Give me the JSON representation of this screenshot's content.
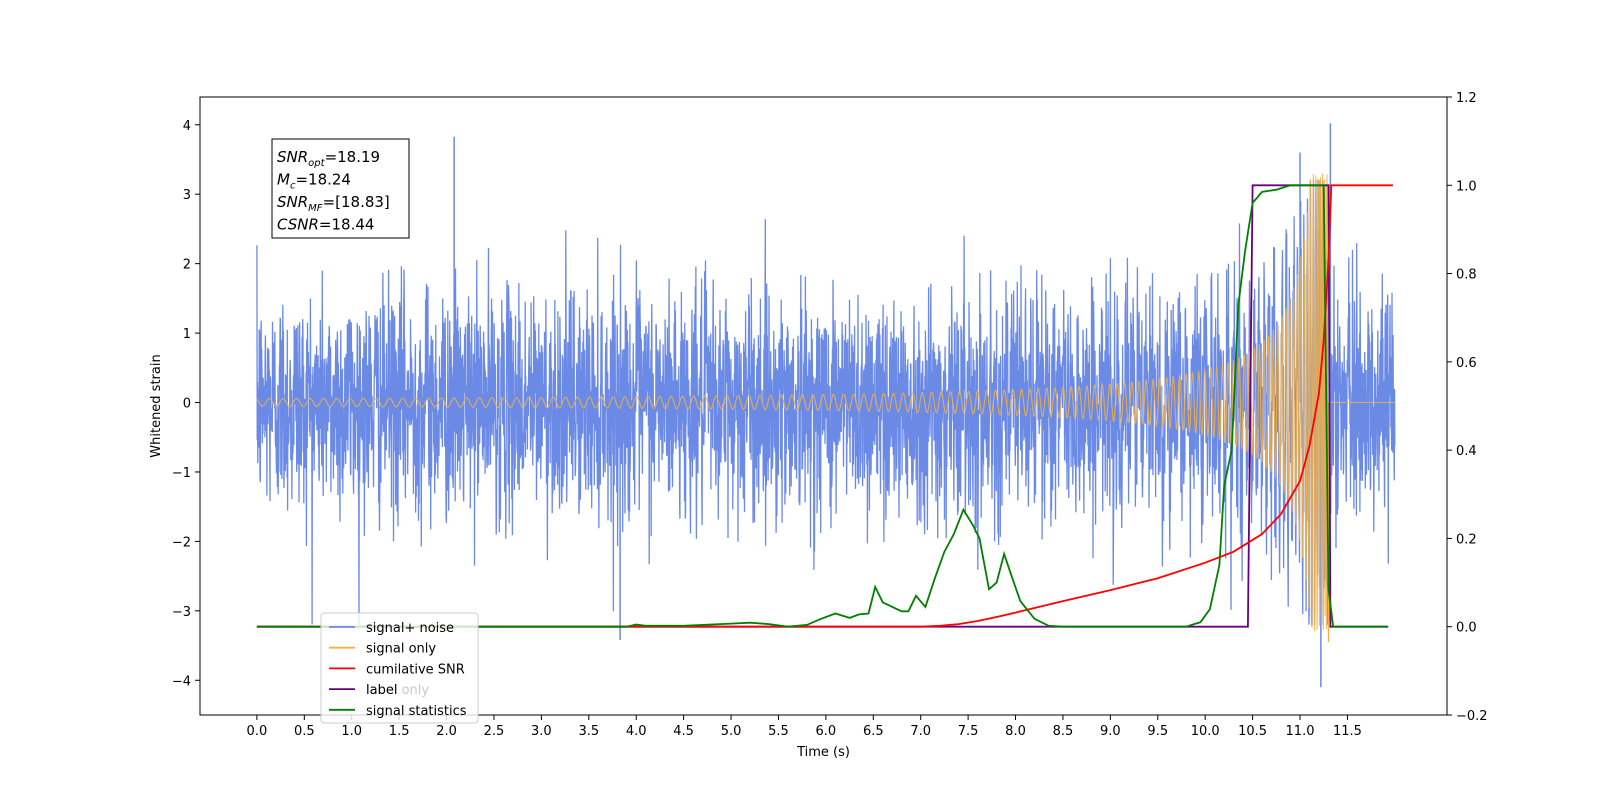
{
  "chart_data": {
    "type": "line",
    "title": "",
    "xlabel": "Time (s)",
    "ylabel": "Whitened strain",
    "xlim": [
      -0.6,
      12.55
    ],
    "ylim_left": [
      -4.5,
      4.4
    ],
    "ylim_right": [
      -0.2,
      1.2
    ],
    "x_ticks": [
      "0.0",
      "0.5",
      "1.0",
      "1.5",
      "2.0",
      "2.5",
      "3.0",
      "3.5",
      "4.0",
      "4.5",
      "5.0",
      "5.5",
      "6.0",
      "6.5",
      "7.0",
      "7.5",
      "8.0",
      "8.5",
      "9.0",
      "9.5",
      "10.0",
      "10.5",
      "11.0",
      "11.5"
    ],
    "x_tick_values": [
      0,
      0.5,
      1,
      1.5,
      2,
      2.5,
      3,
      3.5,
      4,
      4.5,
      5,
      5.5,
      6,
      6.5,
      7,
      7.5,
      8,
      8.5,
      9,
      9.5,
      10,
      10.5,
      11,
      11.5
    ],
    "y_left_ticks": [
      "−4",
      "−3",
      "−2",
      "−1",
      "0",
      "1",
      "2",
      "3",
      "4"
    ],
    "y_left_tick_values": [
      -4,
      -3,
      -2,
      -1,
      0,
      1,
      2,
      3,
      4
    ],
    "y_right_ticks": [
      "−0.2",
      "0.0",
      "0.2",
      "0.4",
      "0.6",
      "0.8",
      "1.0",
      "1.2"
    ],
    "y_right_tick_values": [
      -0.2,
      0,
      0.2,
      0.4,
      0.6,
      0.8,
      1,
      1.2
    ],
    "grid": false,
    "legend_position": "bottom-left",
    "series": [
      {
        "name": "signal+ noise",
        "axis": "left",
        "color": "#6b8ae6",
        "noise_sigma": 0.8,
        "x_range": [
          0,
          12.0
        ],
        "spikes": [
          [
            2.08,
            3.83
          ],
          [
            3.83,
            -3.42
          ],
          [
            11.32,
            4.02
          ],
          [
            11.22,
            -4.1
          ],
          [
            11.0,
            3.6
          ]
        ]
      },
      {
        "name": "signal only",
        "axis": "left",
        "color": "#f5b041",
        "x_range": [
          0,
          12.0
        ],
        "chirp_merger_time": 11.3,
        "chirp_peak_amplitude": 3.3,
        "chirp_min_at": -3.45
      },
      {
        "name": "cumilative SNR",
        "axis": "right",
        "color": "#ff0000",
        "points": [
          [
            0,
            0
          ],
          [
            7,
            0
          ],
          [
            7.2,
            0.002
          ],
          [
            7.4,
            0.006
          ],
          [
            7.6,
            0.013
          ],
          [
            7.8,
            0.022
          ],
          [
            8.0,
            0.032
          ],
          [
            8.5,
            0.058
          ],
          [
            9.0,
            0.083
          ],
          [
            9.5,
            0.11
          ],
          [
            10.0,
            0.145
          ],
          [
            10.3,
            0.17
          ],
          [
            10.6,
            0.21
          ],
          [
            10.8,
            0.255
          ],
          [
            11.0,
            0.33
          ],
          [
            11.1,
            0.41
          ],
          [
            11.2,
            0.53
          ],
          [
            11.25,
            0.65
          ],
          [
            11.3,
            0.83
          ],
          [
            11.33,
            1.0
          ],
          [
            11.98,
            1.0
          ]
        ]
      },
      {
        "name": "label",
        "axis": "right",
        "color": "#6a0080",
        "points": [
          [
            0,
            0
          ],
          [
            10.45,
            0
          ],
          [
            10.5,
            1.0
          ],
          [
            11.3,
            1.0
          ],
          [
            11.32,
            0
          ],
          [
            11.93,
            0
          ]
        ]
      },
      {
        "name": "signal statistics",
        "axis": "right",
        "color": "#008000",
        "points": [
          [
            0,
            0
          ],
          [
            3.9,
            0
          ],
          [
            4.0,
            0.005
          ],
          [
            4.1,
            0.002
          ],
          [
            4.5,
            0.002
          ],
          [
            5.0,
            0.007
          ],
          [
            5.2,
            0.009
          ],
          [
            5.4,
            0.006
          ],
          [
            5.6,
            0.0
          ],
          [
            5.8,
            0.004
          ],
          [
            5.95,
            0.018
          ],
          [
            6.1,
            0.03
          ],
          [
            6.25,
            0.02
          ],
          [
            6.35,
            0.028
          ],
          [
            6.45,
            0.03
          ],
          [
            6.52,
            0.09
          ],
          [
            6.6,
            0.055
          ],
          [
            6.8,
            0.035
          ],
          [
            6.87,
            0.035
          ],
          [
            6.95,
            0.07
          ],
          [
            7.05,
            0.045
          ],
          [
            7.15,
            0.11
          ],
          [
            7.25,
            0.17
          ],
          [
            7.35,
            0.21
          ],
          [
            7.45,
            0.265
          ],
          [
            7.55,
            0.23
          ],
          [
            7.62,
            0.2
          ],
          [
            7.72,
            0.085
          ],
          [
            7.8,
            0.1
          ],
          [
            7.88,
            0.165
          ],
          [
            7.95,
            0.12
          ],
          [
            8.05,
            0.058
          ],
          [
            8.2,
            0.018
          ],
          [
            8.35,
            0.002
          ],
          [
            8.5,
            0
          ],
          [
            9.8,
            0
          ],
          [
            9.9,
            0.007
          ],
          [
            9.95,
            0.01
          ],
          [
            10.05,
            0.04
          ],
          [
            10.15,
            0.14
          ],
          [
            10.2,
            0.32
          ],
          [
            10.28,
            0.4
          ],
          [
            10.35,
            0.73
          ],
          [
            10.42,
            0.85
          ],
          [
            10.5,
            0.96
          ],
          [
            10.6,
            0.985
          ],
          [
            10.75,
            0.99
          ],
          [
            10.9,
            1.0
          ],
          [
            11.25,
            1.0
          ],
          [
            11.3,
            0.085
          ],
          [
            11.35,
            0.0
          ],
          [
            11.92,
            0
          ]
        ]
      }
    ],
    "annotation": {
      "lines": [
        {
          "label": "SNR",
          "sub": "opt",
          "value": "=18.19"
        },
        {
          "label": "M",
          "sub": "c",
          "value": "=18.24"
        },
        {
          "label": "SNR",
          "sub": "MF",
          "value": "=[18.83]"
        },
        {
          "label": "CSNR",
          "sub": "",
          "value": "=18.44"
        }
      ]
    },
    "legend": [
      {
        "label": "signal+ noise",
        "color": "#6b8ae6"
      },
      {
        "label": "signal only",
        "color": "#f5b041"
      },
      {
        "label": "cumilative SNR",
        "color": "#ff0000"
      },
      {
        "label": "label",
        "color": "#6a0080"
      },
      {
        "label": "signal statistics",
        "color": "#008000"
      }
    ],
    "hidden_legend_text": "label only"
  }
}
